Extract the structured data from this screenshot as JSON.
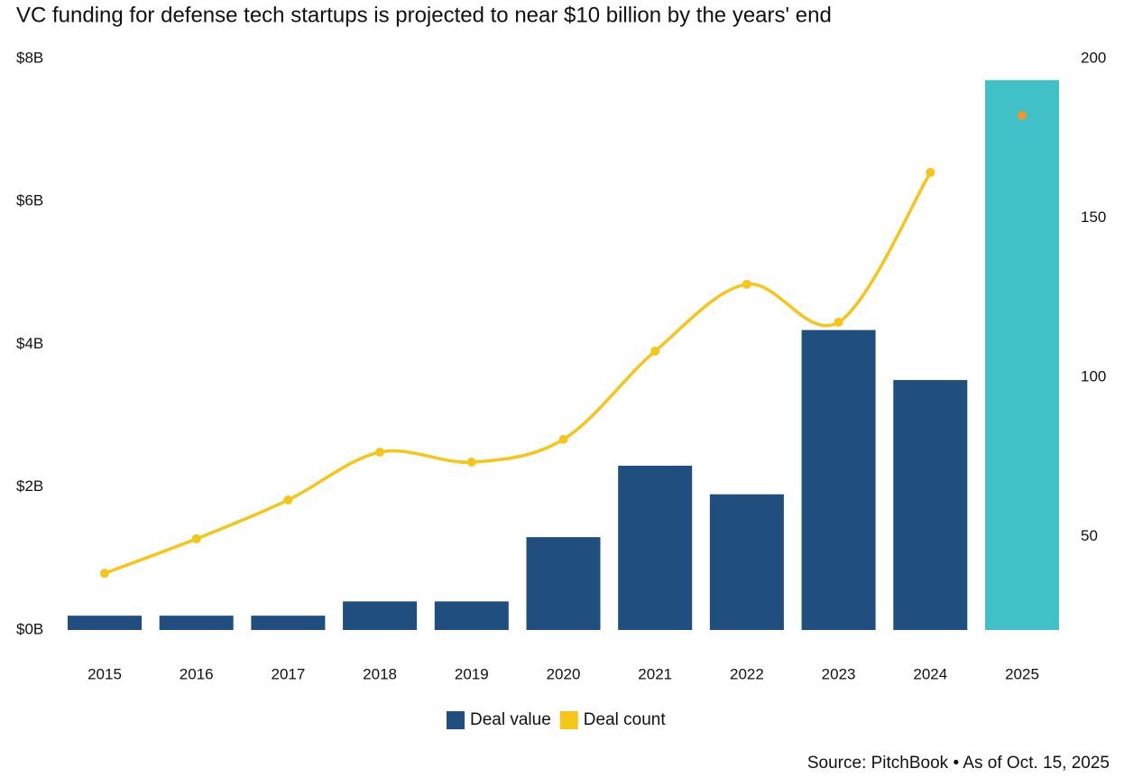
{
  "chart_data": {
    "type": "bar_line",
    "title": "VC funding for defense tech startups is projected to near $10 billion by the years' end",
    "source": "Source: PitchBook • As of Oct. 15, 2025",
    "categories": [
      "2015",
      "2016",
      "2017",
      "2018",
      "2019",
      "2020",
      "2021",
      "2022",
      "2023",
      "2024",
      "2025"
    ],
    "series": [
      {
        "name": "Deal value",
        "color": "#1f4e7f",
        "type": "bar",
        "bar_colors": [
          "#1f4e7f",
          "#1f4e7f",
          "#1f4e7f",
          "#1f4e7f",
          "#1f4e7f",
          "#1f4e7f",
          "#1f4e7f",
          "#1f4e7f",
          "#1f4e7f",
          "#1f4e7f",
          "#40c1c8"
        ],
        "values": [
          0.2,
          0.2,
          0.2,
          0.4,
          0.4,
          1.3,
          2.3,
          1.9,
          4.2,
          3.5,
          7.7
        ]
      },
      {
        "name": "Deal count",
        "color": "#f5c518",
        "type": "line",
        "axis": "y2",
        "projected": [
          false,
          false,
          false,
          false,
          false,
          false,
          false,
          false,
          false,
          false,
          true
        ],
        "projected_color": "#f0962a",
        "values": [
          38.5,
          49.3,
          61.5,
          76.5,
          73.4,
          80.5,
          108.2,
          129.2,
          117.3,
          164.3,
          182.2
        ]
      }
    ],
    "ylim": [
      0,
      8
    ],
    "yticks": [
      {
        "value": 0,
        "label": "$0B"
      },
      {
        "value": 2,
        "label": "$2B"
      },
      {
        "value": 4,
        "label": "$4B"
      },
      {
        "value": 6,
        "label": "$6B"
      },
      {
        "value": 8,
        "label": "$8B"
      }
    ],
    "y2lim": [
      20.7,
      200
    ],
    "y2ticks": [
      50,
      100,
      150,
      200
    ],
    "grid": false
  }
}
